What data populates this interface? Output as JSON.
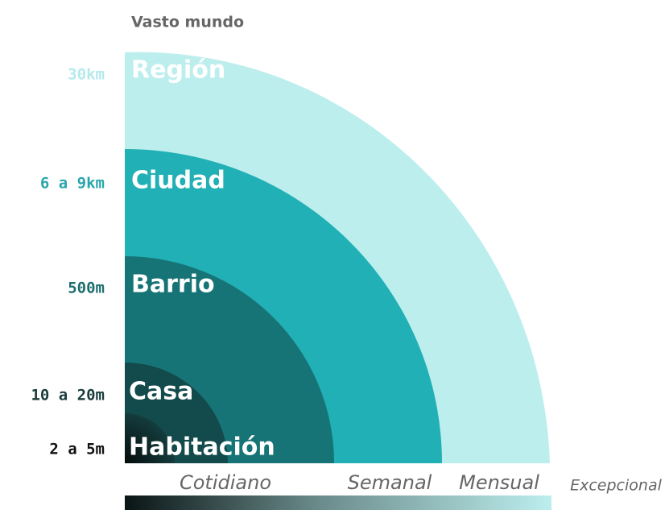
{
  "header": {
    "title": "Vasto mundo"
  },
  "levels": [
    {
      "name": "Región",
      "distance": "30km"
    },
    {
      "name": "Ciudad",
      "distance": "6 a 9km"
    },
    {
      "name": "Barrio",
      "distance": "500m"
    },
    {
      "name": "Casa",
      "distance": "10 a 20m"
    },
    {
      "name": "Habitación",
      "distance": "2 a 5m"
    }
  ],
  "frequencies": [
    "Cotidiano",
    "Semanal",
    "Mensual",
    "Excepcional"
  ]
}
